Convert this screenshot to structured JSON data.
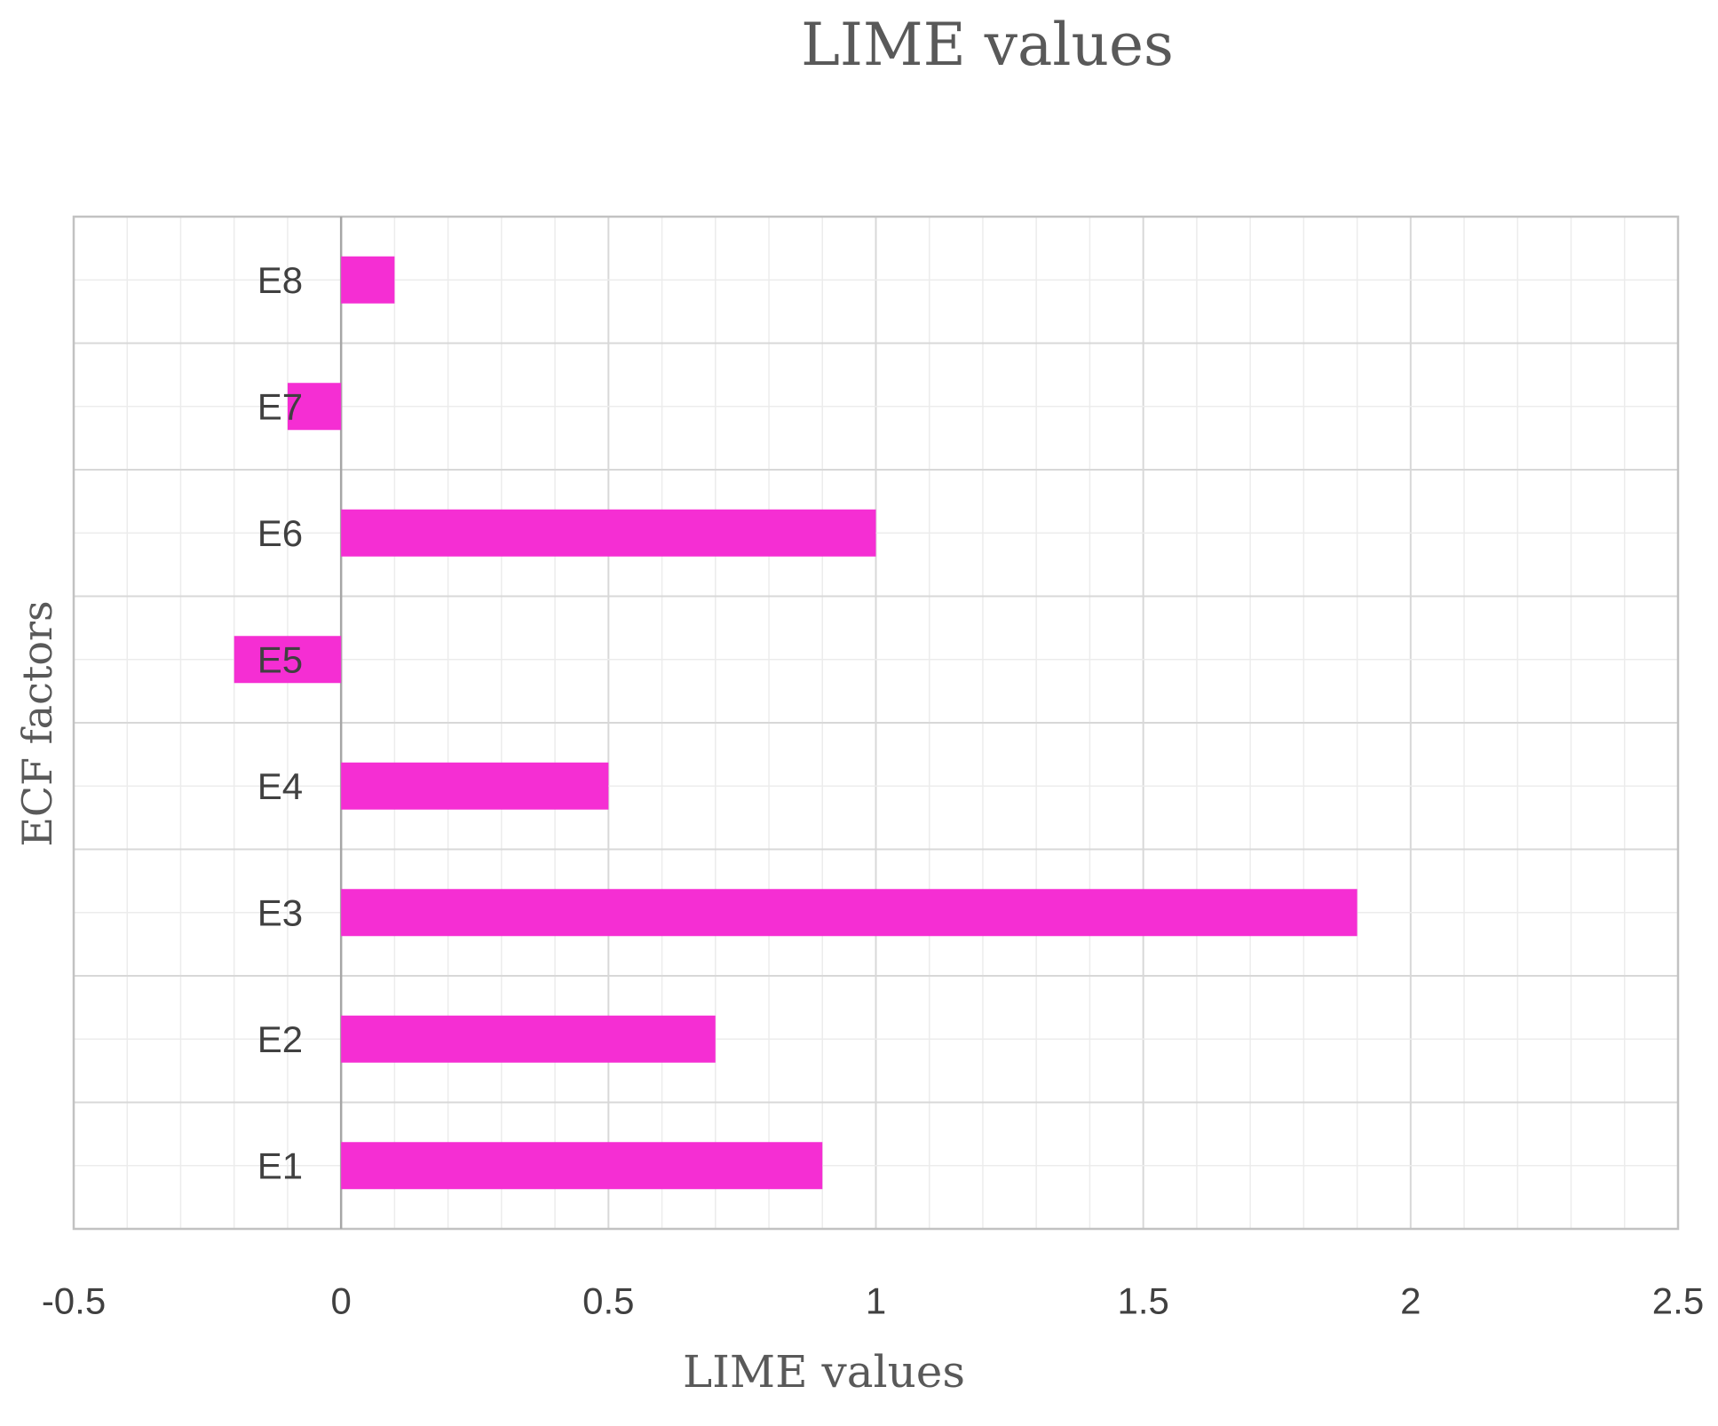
{
  "chart_data": {
    "type": "bar",
    "orientation": "horizontal",
    "title": "LIME values",
    "xlabel": "LIME values",
    "ylabel": "ECF factors",
    "categories": [
      "E1",
      "E2",
      "E3",
      "E4",
      "E5",
      "E6",
      "E7",
      "E8"
    ],
    "values": [
      0.9,
      0.7,
      1.9,
      0.5,
      -0.2,
      1.0,
      -0.1,
      0.1
    ],
    "xlim": [
      -0.5,
      2.5
    ],
    "x_ticks": [
      "-0.5",
      "0",
      "0.5",
      "1",
      "1.5",
      "2",
      "2.5"
    ],
    "x_major_gridline_every": 0.5,
    "x_minor_gridline_every": 0.1,
    "grid": "on",
    "legend": "none",
    "bar_color": "#f52ed3"
  },
  "colors": {
    "background": "#ffffff",
    "bar": "#f52ed3",
    "gridline_minor": "#ececec",
    "gridline_major": "#d8d8d8",
    "plot_border": "#c2c2c2",
    "zero_axis": "#a6a6a6",
    "title_text": "#595959",
    "tick_text": "#404040"
  }
}
